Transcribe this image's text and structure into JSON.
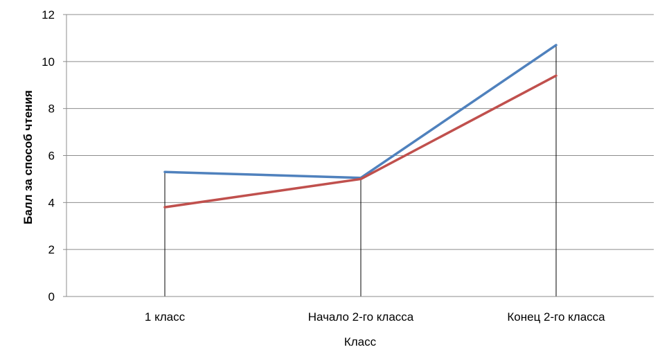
{
  "chart_data": {
    "type": "line",
    "categories": [
      "1 класс",
      "Начало 2-го класса",
      "Конец 2-го класса"
    ],
    "series": [
      {
        "values": [
          5.3,
          5.05,
          10.7
        ],
        "color": "#4f81bd"
      },
      {
        "values": [
          3.8,
          5.0,
          9.4
        ],
        "color": "#c0504d"
      }
    ],
    "xlabel": "Класс",
    "ylabel": "Балл за способ чтения",
    "ylim": [
      0,
      12
    ],
    "yticks": [
      0,
      2,
      4,
      6,
      8,
      10,
      12
    ],
    "grid": true,
    "drop_lines": true
  }
}
